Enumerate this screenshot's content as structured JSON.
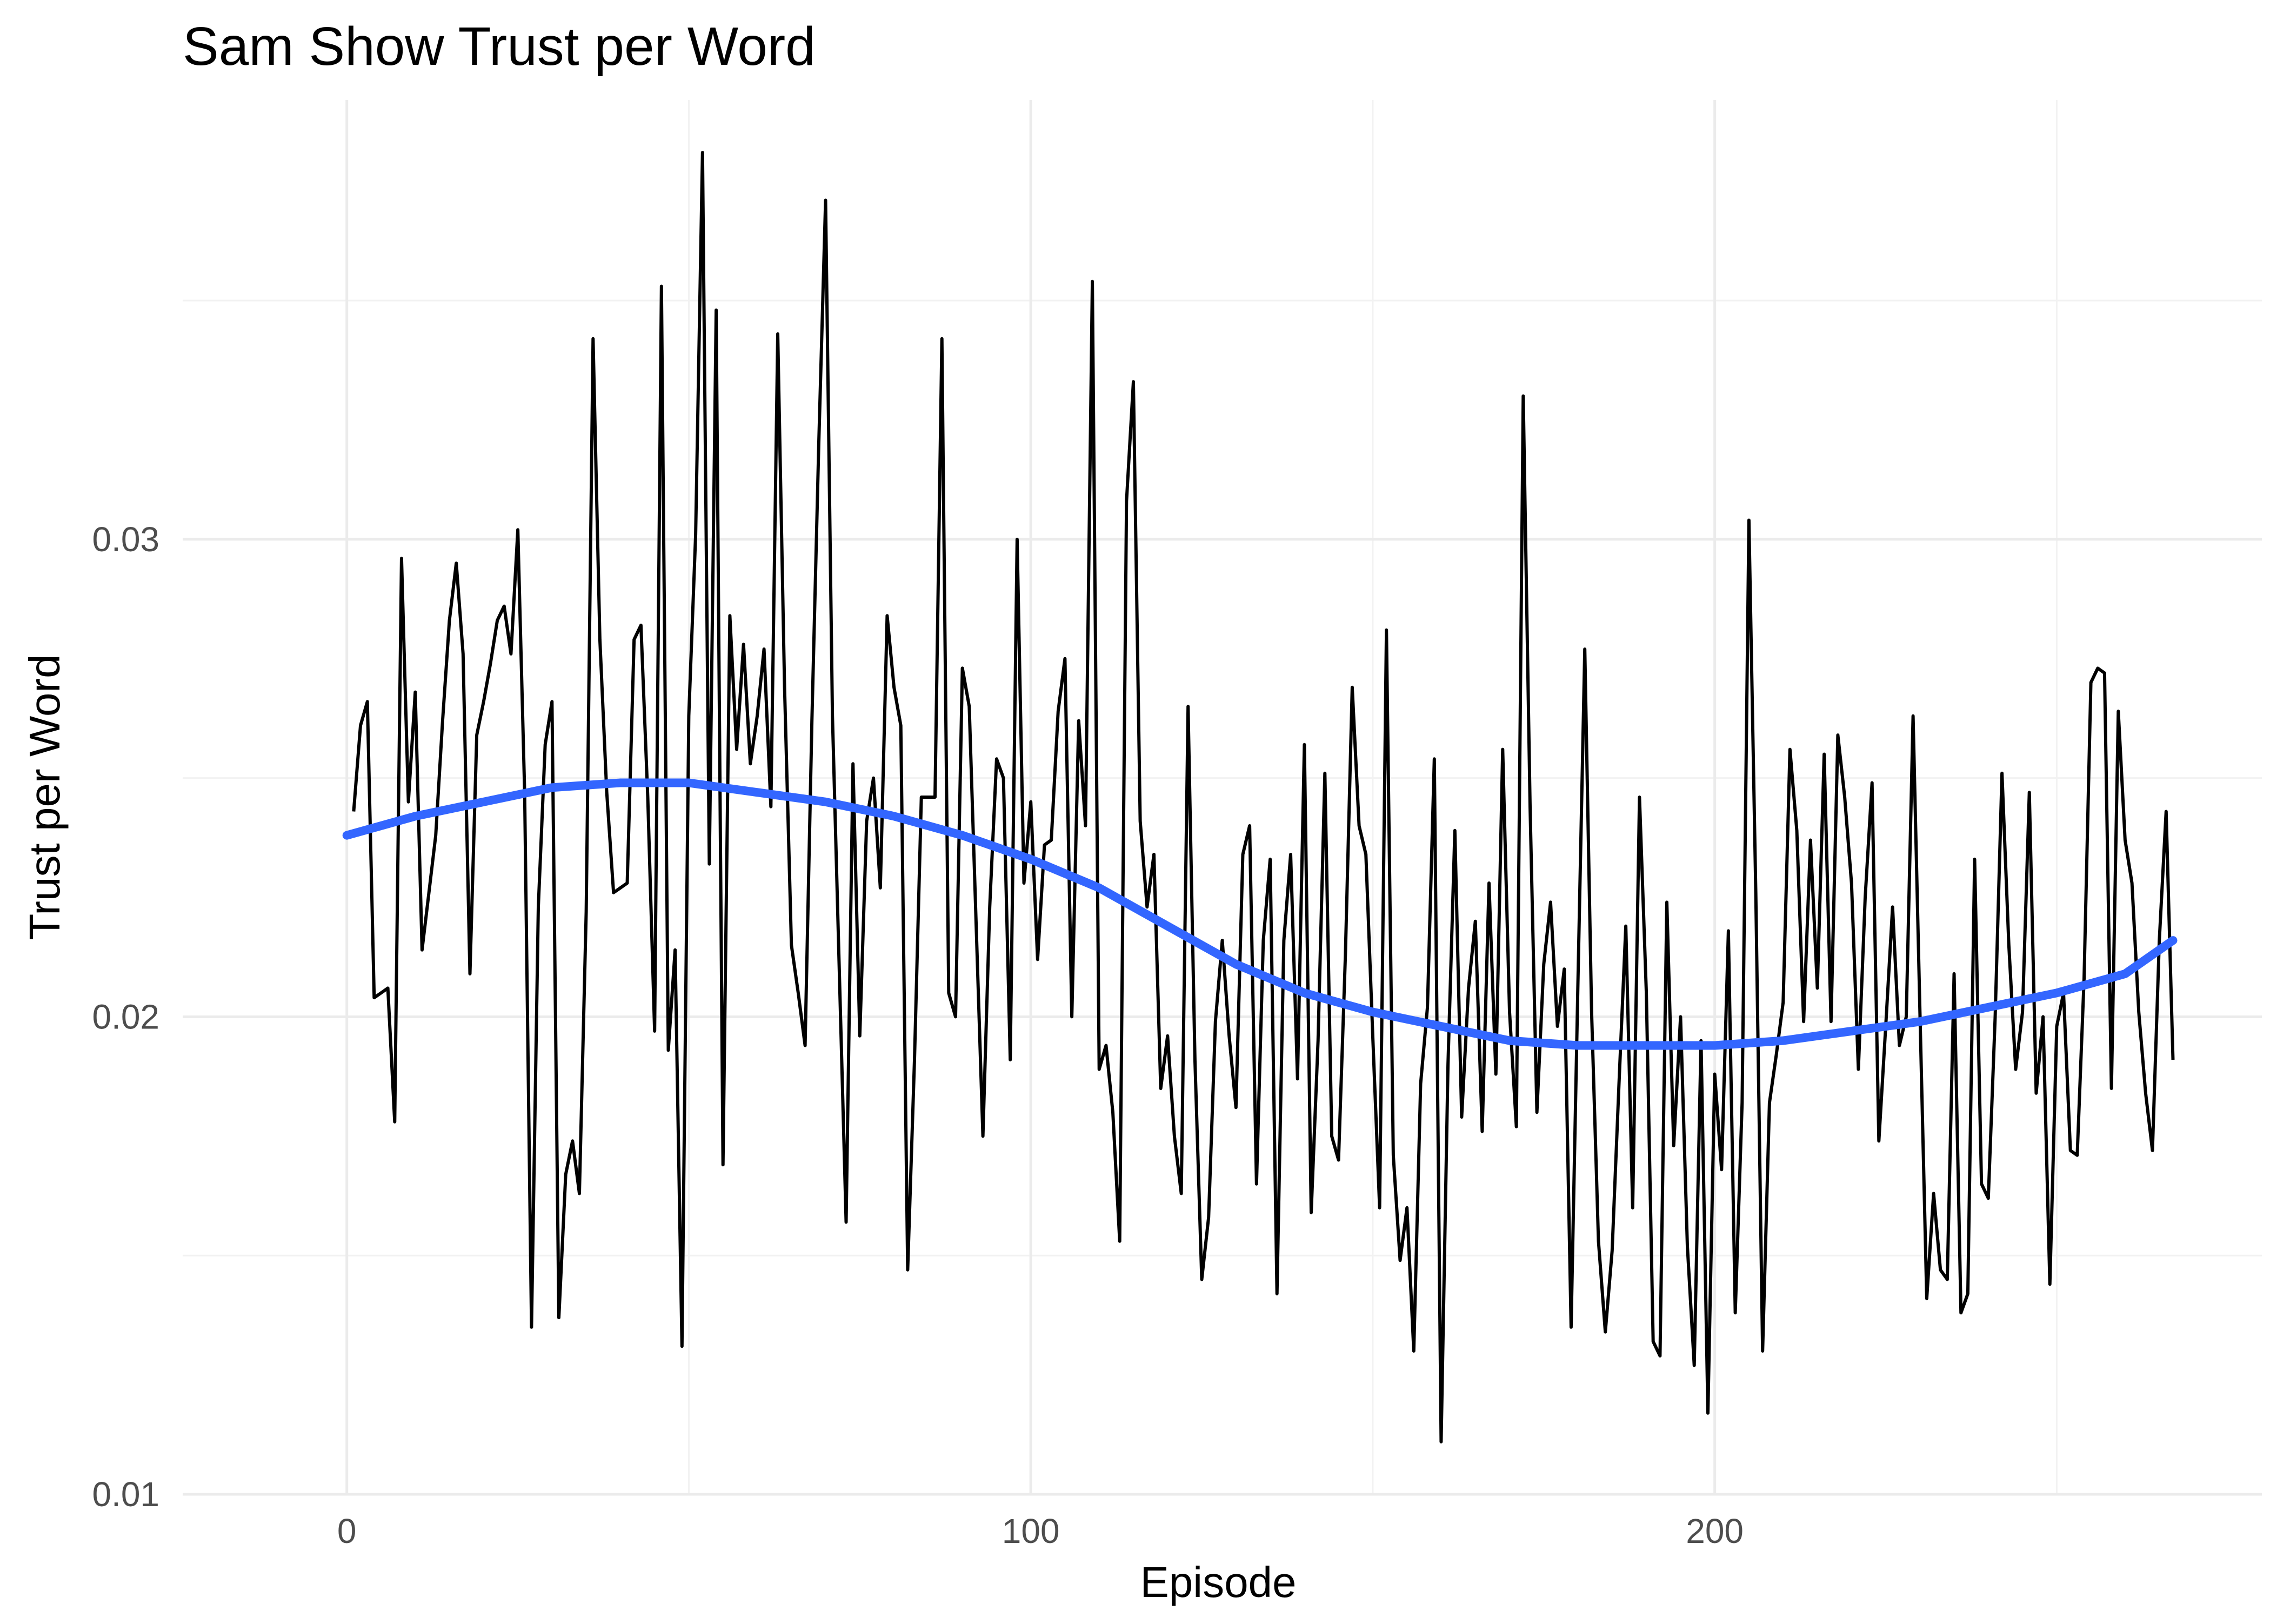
{
  "chart_data": {
    "type": "line",
    "title": "Sam Show Trust per Word",
    "xlabel": "Episode",
    "ylabel": "Trust per Word",
    "xlim": [
      -24,
      280
    ],
    "ylim": [
      0.01,
      0.0392
    ],
    "xticks": [
      0,
      100,
      200
    ],
    "xtick_labels": [
      "0",
      "100",
      "200"
    ],
    "yticks": [
      0.01,
      0.02,
      0.03
    ],
    "ytick_labels": [
      "0.01",
      "0.02",
      "0.03"
    ],
    "grid": true,
    "legend": "none",
    "colors": {
      "series": "#000000",
      "trend": "#3366ff"
    },
    "series": [
      {
        "x": [
          1,
          2,
          3,
          4,
          5,
          6,
          7,
          8,
          9,
          10,
          11,
          12,
          13,
          14,
          15,
          16,
          17,
          18,
          19,
          20,
          21,
          22,
          23,
          24,
          25,
          26,
          27,
          28,
          29,
          30,
          31,
          32,
          33,
          34,
          35,
          36,
          37,
          38,
          39,
          40,
          41,
          42,
          43,
          44,
          45,
          46,
          47,
          48,
          49,
          50,
          51,
          52,
          53,
          54,
          55,
          56,
          57,
          58,
          59,
          60,
          61,
          62,
          63,
          64,
          65,
          66,
          67,
          68,
          69,
          70,
          71,
          72,
          73,
          74,
          75,
          76,
          77,
          78,
          79,
          80,
          81,
          82,
          83,
          84,
          85,
          86,
          87,
          88,
          89,
          90,
          91,
          92,
          93,
          94,
          95,
          96,
          97,
          98,
          99,
          100,
          101,
          102,
          103,
          104,
          105,
          106,
          107,
          108,
          109,
          110,
          111,
          112,
          113,
          114,
          115,
          116,
          117,
          118,
          119,
          120,
          121,
          122,
          123,
          124,
          125,
          126,
          127,
          128,
          129,
          130,
          131,
          132,
          133,
          134,
          135,
          136,
          137,
          138,
          139,
          140,
          141,
          142,
          143,
          144,
          145,
          146,
          147,
          148,
          149,
          150,
          151,
          152,
          153,
          154,
          155,
          156,
          157,
          158,
          159,
          160,
          161,
          162,
          163,
          164,
          165,
          166,
          167,
          168,
          169,
          170,
          171,
          172,
          173,
          174,
          175,
          176,
          177,
          178,
          179,
          180,
          181,
          182,
          183,
          184,
          185,
          186,
          187,
          188,
          189,
          190,
          191,
          192,
          193,
          194,
          195,
          196,
          197,
          198,
          199,
          200,
          201,
          202,
          203,
          204,
          205,
          206,
          207,
          208,
          209,
          210,
          211,
          212,
          213,
          214,
          215,
          216,
          217,
          218,
          219,
          220,
          221,
          222,
          223,
          224,
          225,
          226,
          227,
          228,
          229,
          230,
          231,
          232,
          233,
          234,
          235,
          236,
          237,
          238,
          239,
          240,
          241,
          242,
          243,
          244,
          245,
          246,
          247,
          248,
          249,
          250,
          251,
          252,
          253,
          254,
          255,
          256,
          257,
          258,
          259,
          260,
          261,
          262,
          263,
          264,
          265,
          266,
          267
        ],
        "values": [
          0.0243,
          0.0261,
          0.0266,
          0.0204,
          0.0205,
          0.0206,
          0.0178,
          0.0296,
          0.0245,
          0.0268,
          0.0214,
          0.0226,
          0.0238,
          0.0262,
          0.0283,
          0.0295,
          0.0276,
          0.0209,
          0.0259,
          0.0266,
          0.0274,
          0.0283,
          0.0286,
          0.0276,
          0.0302,
          0.0247,
          0.0135,
          0.0223,
          0.0257,
          0.0266,
          0.0137,
          0.0167,
          0.0174,
          0.0163,
          0.0222,
          0.0342,
          0.0279,
          0.0247,
          0.0226,
          0.0227,
          0.0228,
          0.0279,
          0.0282,
          0.0246,
          0.0197,
          0.0353,
          0.0193,
          0.0214,
          0.0131,
          0.0263,
          0.0301,
          0.0381,
          0.0232,
          0.0348,
          0.0169,
          0.0284,
          0.0256,
          0.0278,
          0.0253,
          0.0263,
          0.0277,
          0.0244,
          0.0343,
          0.0269,
          0.0215,
          0.0205,
          0.0194,
          0.0262,
          0.032,
          0.0371,
          0.0263,
          0.021,
          0.0157,
          0.0253,
          0.0196,
          0.0241,
          0.025,
          0.0227,
          0.0284,
          0.0269,
          0.0261,
          0.0147,
          0.0191,
          0.0246,
          0.0246,
          0.0246,
          0.0342,
          0.0205,
          0.02,
          0.0273,
          0.0265,
          0.022,
          0.0175,
          0.0223,
          0.0254,
          0.025,
          0.0191,
          0.03,
          0.0228,
          0.0245,
          0.0212,
          0.0236,
          0.0237,
          0.0264,
          0.0275,
          0.02,
          0.0262,
          0.024,
          0.0354,
          0.0189,
          0.0194,
          0.018,
          0.0153,
          0.0308,
          0.0333,
          0.0241,
          0.0223,
          0.0234,
          0.0185,
          0.0196,
          0.0175,
          0.0163,
          0.0265,
          0.0191,
          0.0145,
          0.0158,
          0.0199,
          0.0216,
          0.0196,
          0.0181,
          0.0234,
          0.024,
          0.0165,
          0.0216,
          0.0233,
          0.0142,
          0.0216,
          0.0234,
          0.0187,
          0.0257,
          0.0159,
          0.0195,
          0.0251,
          0.0175,
          0.017,
          0.0213,
          0.0269,
          0.024,
          0.0234,
          0.0196,
          0.016,
          0.0281,
          0.0171,
          0.0149,
          0.016,
          0.013,
          0.0186,
          0.0202,
          0.0254,
          0.0111,
          0.019,
          0.0239,
          0.0179,
          0.0206,
          0.022,
          0.0176,
          0.0228,
          0.0188,
          0.0256,
          0.0201,
          0.0177,
          0.033,
          0.0244,
          0.018,
          0.0211,
          0.0224,
          0.0198,
          0.021,
          0.0135,
          0.0207,
          0.0277,
          0.0201,
          0.0153,
          0.0134,
          0.0151,
          0.0186,
          0.0219,
          0.016,
          0.0246,
          0.0205,
          0.0132,
          0.0129,
          0.0224,
          0.0173,
          0.02,
          0.0152,
          0.0127,
          0.0195,
          0.0117,
          0.0188,
          0.0168,
          0.0218,
          0.0138,
          0.0182,
          0.0304,
          0.0226,
          0.013,
          0.0182,
          0.0192,
          0.0203,
          0.0256,
          0.0239,
          0.0199,
          0.0237,
          0.0206,
          0.0255,
          0.0199,
          0.0259,
          0.0246,
          0.0228,
          0.0189,
          0.0225,
          0.0249,
          0.0174,
          0.0198,
          0.0223,
          0.0194,
          0.02,
          0.0263,
          0.0201,
          0.0141,
          0.0163,
          0.0147,
          0.0145,
          0.0209,
          0.0138,
          0.0142,
          0.0233,
          0.0165,
          0.0162,
          0.02,
          0.0251,
          0.0215,
          0.0189,
          0.0201,
          0.0247,
          0.0184,
          0.02,
          0.0144,
          0.0198,
          0.0205,
          0.0172,
          0.0171,
          0.0208,
          0.027,
          0.0273,
          0.0272,
          0.0185,
          0.0264,
          0.0237,
          0.0228,
          0.0201,
          0.0184,
          0.0172,
          0.0216,
          0.0243,
          0.0191
        ]
      },
      {
        "x": [
          0,
          10,
          20,
          30,
          40,
          50,
          60,
          70,
          80,
          90,
          100,
          110,
          120,
          130,
          140,
          150,
          160,
          170,
          180,
          190,
          200,
          210,
          220,
          230,
          240,
          250,
          260,
          267
        ],
        "values": [
          0.0238,
          0.0242,
          0.0245,
          0.0248,
          0.0249,
          0.0249,
          0.0247,
          0.0245,
          0.0242,
          0.0238,
          0.0233,
          0.0227,
          0.0219,
          0.0211,
          0.0205,
          0.0201,
          0.0198,
          0.0195,
          0.0194,
          0.0194,
          0.0194,
          0.0195,
          0.0197,
          0.0199,
          0.0202,
          0.0205,
          0.0209,
          0.0216
        ]
      }
    ]
  }
}
